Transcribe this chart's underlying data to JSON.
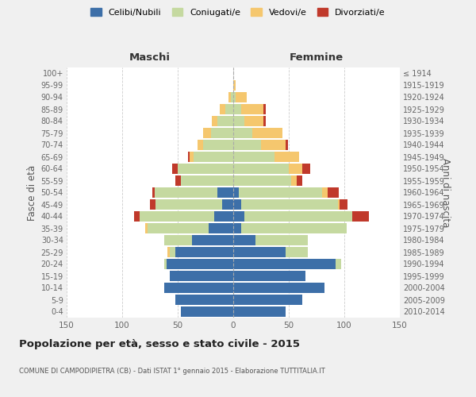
{
  "age_groups": [
    "0-4",
    "5-9",
    "10-14",
    "15-19",
    "20-24",
    "25-29",
    "30-34",
    "35-39",
    "40-44",
    "45-49",
    "50-54",
    "55-59",
    "60-64",
    "65-69",
    "70-74",
    "75-79",
    "80-84",
    "85-89",
    "90-94",
    "95-99",
    "100+"
  ],
  "birth_years": [
    "2010-2014",
    "2005-2009",
    "2000-2004",
    "1995-1999",
    "1990-1994",
    "1985-1989",
    "1980-1984",
    "1975-1979",
    "1970-1974",
    "1965-1969",
    "1960-1964",
    "1955-1959",
    "1950-1954",
    "1945-1949",
    "1940-1944",
    "1935-1939",
    "1930-1934",
    "1925-1929",
    "1920-1924",
    "1915-1919",
    "≤ 1914"
  ],
  "male": {
    "celibi": [
      47,
      52,
      62,
      57,
      60,
      52,
      37,
      22,
      17,
      10,
      14,
      0,
      0,
      0,
      0,
      0,
      0,
      0,
      0,
      0,
      0
    ],
    "coniugati": [
      0,
      0,
      0,
      0,
      2,
      5,
      25,
      55,
      67,
      60,
      57,
      47,
      50,
      36,
      27,
      20,
      14,
      7,
      2,
      0,
      0
    ],
    "vedovi": [
      0,
      0,
      0,
      0,
      0,
      2,
      0,
      2,
      0,
      0,
      0,
      0,
      0,
      3,
      5,
      7,
      5,
      5,
      2,
      0,
      0
    ],
    "divorziati": [
      0,
      0,
      0,
      0,
      0,
      0,
      0,
      0,
      5,
      5,
      2,
      5,
      5,
      2,
      0,
      0,
      0,
      0,
      0,
      0,
      0
    ]
  },
  "female": {
    "nubili": [
      47,
      62,
      82,
      65,
      92,
      47,
      20,
      7,
      10,
      7,
      5,
      0,
      0,
      0,
      0,
      0,
      0,
      0,
      0,
      0,
      0
    ],
    "coniugate": [
      0,
      0,
      0,
      0,
      5,
      20,
      47,
      95,
      97,
      87,
      75,
      52,
      50,
      37,
      25,
      17,
      10,
      7,
      2,
      0,
      0
    ],
    "vedove": [
      0,
      0,
      0,
      0,
      0,
      0,
      0,
      0,
      0,
      2,
      5,
      5,
      12,
      22,
      22,
      27,
      17,
      20,
      10,
      2,
      0
    ],
    "divorziate": [
      0,
      0,
      0,
      0,
      0,
      0,
      0,
      0,
      15,
      7,
      10,
      5,
      7,
      0,
      2,
      0,
      2,
      2,
      0,
      0,
      0
    ]
  },
  "colors": {
    "celibi": "#3d6fa8",
    "coniugati": "#c5d9a0",
    "vedovi": "#f5c76e",
    "divorziati": "#c0392b"
  },
  "xlim": 150,
  "title": "Popolazione per età, sesso e stato civile - 2015",
  "subtitle": "COMUNE DI CAMPODIPIETRA (CB) - Dati ISTAT 1° gennaio 2015 - Elaborazione TUTTITALIA.IT",
  "ylabel_left": "Fasce di età",
  "ylabel_right": "Anni di nascita",
  "xlabel_left": "Maschi",
  "xlabel_right": "Femmine",
  "legend_labels": [
    "Celibi/Nubili",
    "Coniugati/e",
    "Vedovi/e",
    "Divorziati/e"
  ],
  "bg_color": "#f0f0f0",
  "plot_bg": "#ffffff"
}
